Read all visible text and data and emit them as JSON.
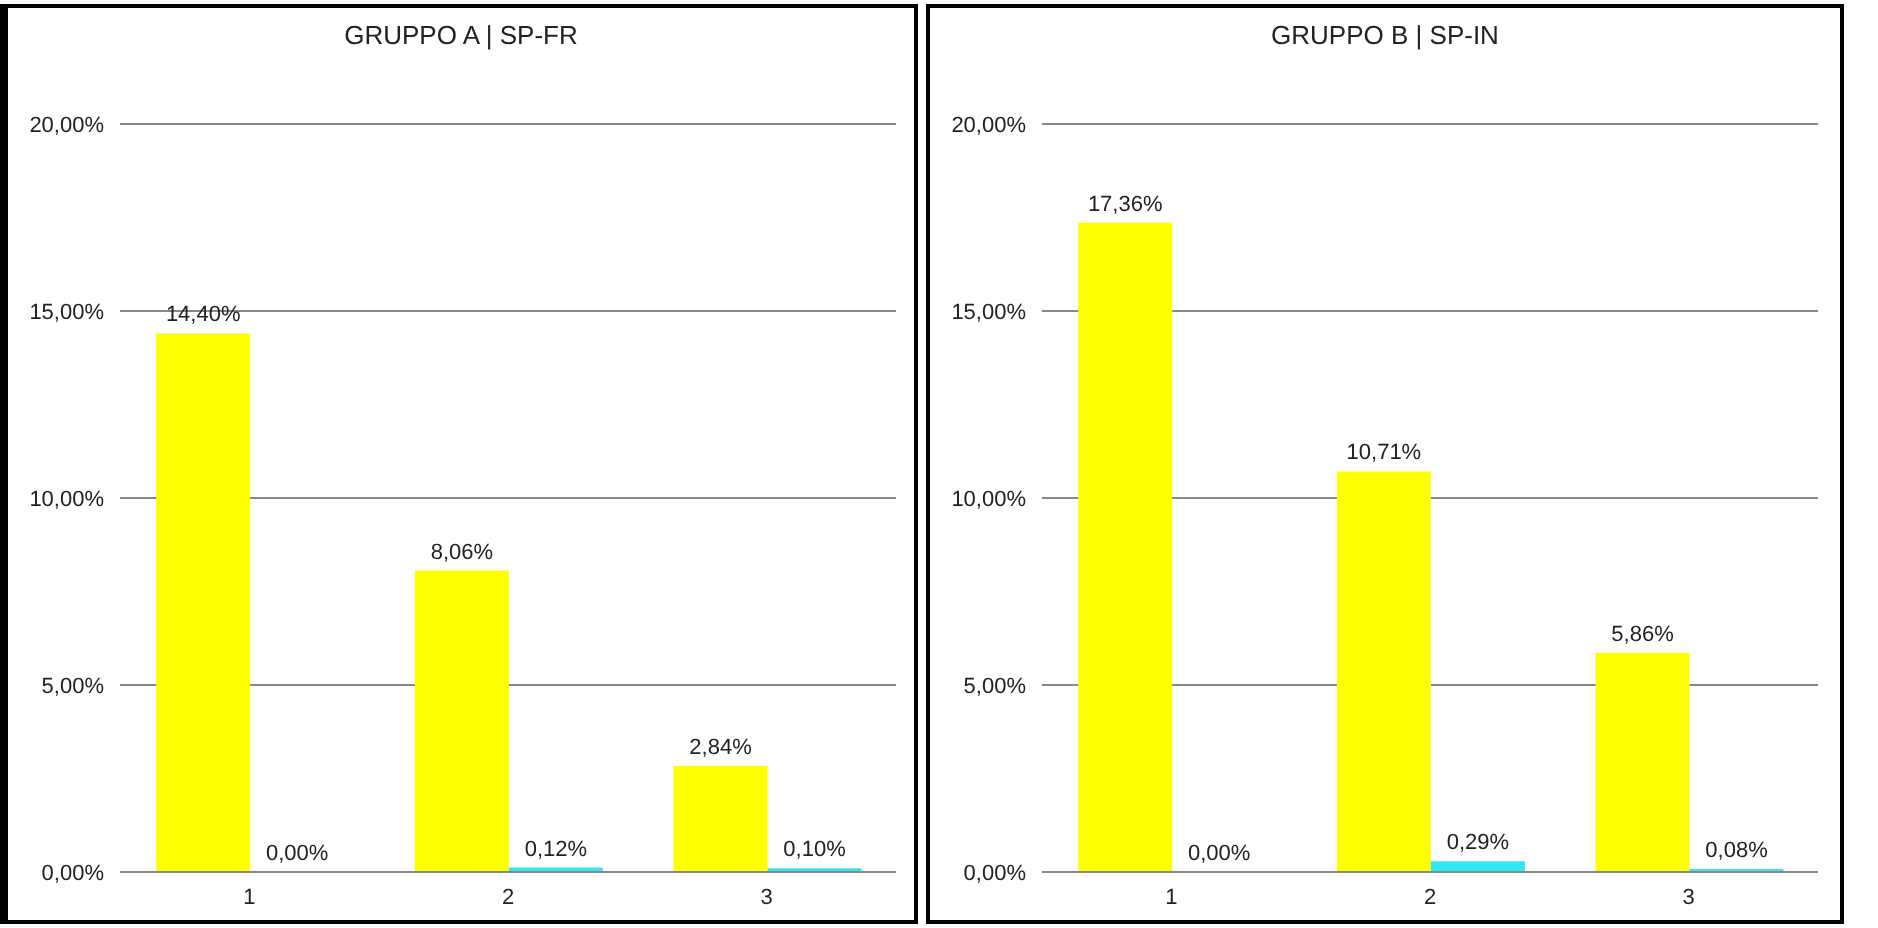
{
  "chart_data": [
    {
      "type": "bar",
      "title": "GRUPPO A | SP-FR",
      "categories": [
        "1",
        "2",
        "3"
      ],
      "series": [
        {
          "color": "#ffff00",
          "values": [
            14.4,
            8.06,
            2.84
          ],
          "value_labels": [
            "14,40%",
            "8,06%",
            "2,84%"
          ]
        },
        {
          "color": "#2ee8f5",
          "values": [
            0.0,
            0.12,
            0.1
          ],
          "value_labels": [
            "0,00%",
            "0,12%",
            "0,10%"
          ]
        }
      ],
      "ylim": [
        0,
        20
      ],
      "yticks": [
        {
          "value": 0,
          "label": "0,00%"
        },
        {
          "value": 5,
          "label": "5,00%"
        },
        {
          "value": 10,
          "label": "10,00%"
        },
        {
          "value": 15,
          "label": "15,00%"
        },
        {
          "value": 20,
          "label": "20,00%"
        }
      ],
      "grid": "y"
    },
    {
      "type": "bar",
      "title": "GRUPPO B | SP-IN",
      "categories": [
        "1",
        "2",
        "3"
      ],
      "series": [
        {
          "color": "#ffff00",
          "values": [
            17.36,
            10.71,
            5.86
          ],
          "value_labels": [
            "17,36%",
            "10,71%",
            "5,86%"
          ]
        },
        {
          "color": "#2ee8f5",
          "values": [
            0.0,
            0.29,
            0.08
          ],
          "value_labels": [
            "0,00%",
            "0,29%",
            "0,08%"
          ]
        }
      ],
      "ylim": [
        0,
        20
      ],
      "yticks": [
        {
          "value": 0,
          "label": "0,00%"
        },
        {
          "value": 5,
          "label": "5,00%"
        },
        {
          "value": 10,
          "label": "10,00%"
        },
        {
          "value": 15,
          "label": "15,00%"
        },
        {
          "value": 20,
          "label": "20,00%"
        }
      ],
      "grid": "y"
    }
  ]
}
